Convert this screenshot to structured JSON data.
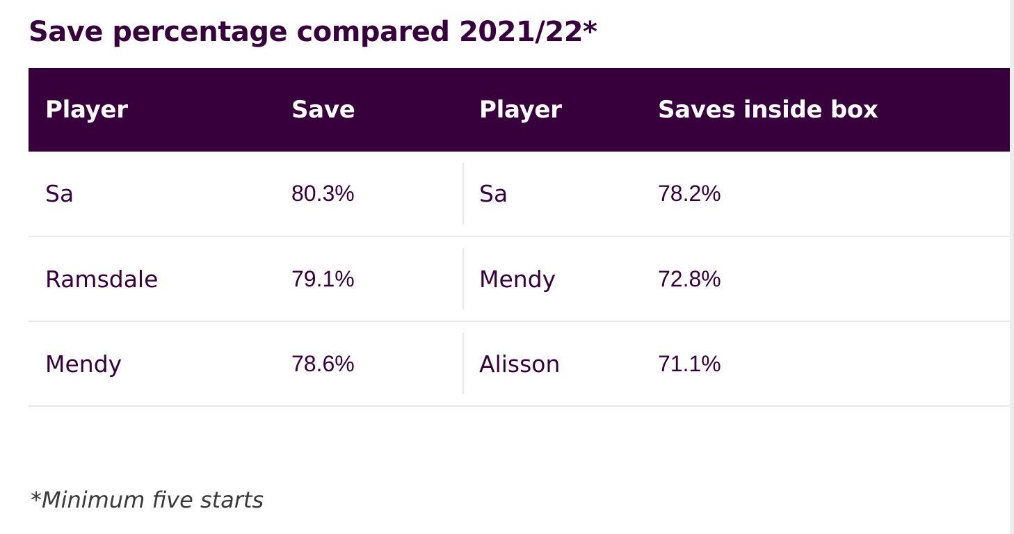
{
  "title": "Save percentage compared 2021/22*",
  "table": {
    "headers": [
      "Player",
      "Save",
      "Player",
      "Saves inside box"
    ],
    "rows": [
      [
        "Sa",
        "80.3%",
        "Sa",
        "78.2%"
      ],
      [
        "Ramsdale",
        "79.1%",
        "Mendy",
        "72.8%"
      ],
      [
        "Mendy",
        "78.6%",
        "Alisson",
        "71.1%"
      ]
    ]
  },
  "footnote": "*Minimum five starts",
  "colors": {
    "header_bg": "#37003c",
    "header_text": "#ffffff",
    "body_text": "#37003c",
    "row_divider": "#e9e9e9"
  }
}
